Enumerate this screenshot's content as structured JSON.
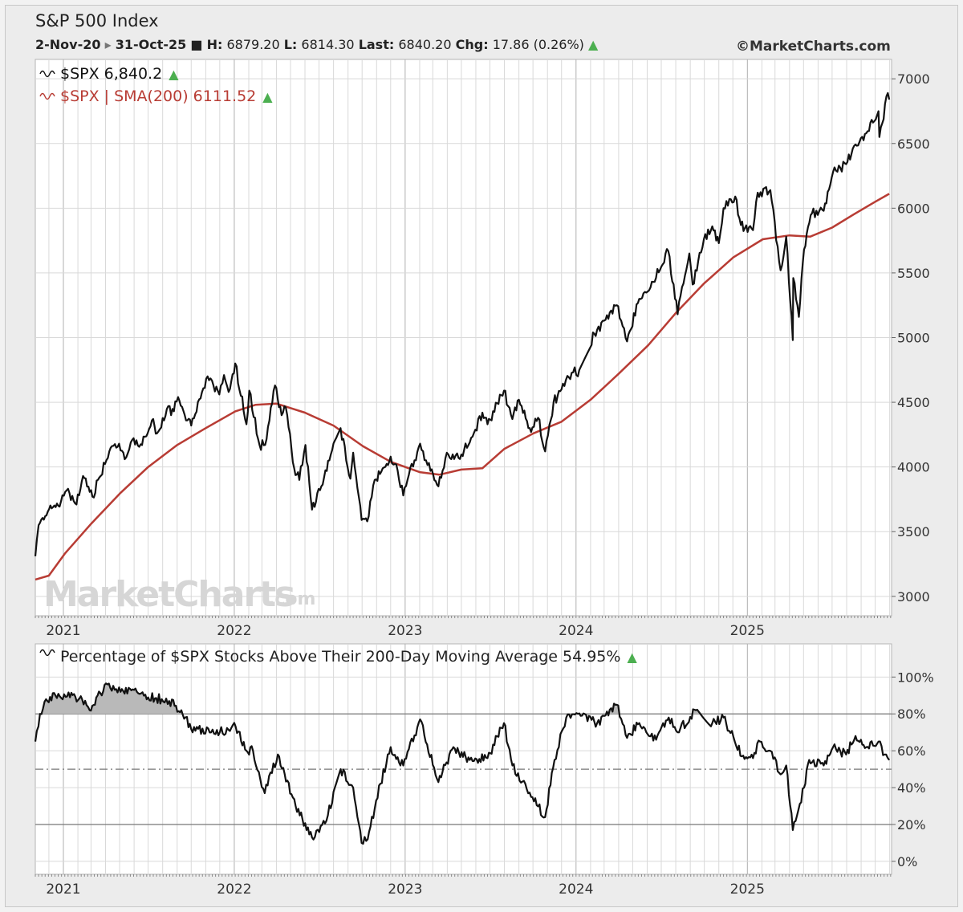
{
  "header": {
    "title": "S&P 500 Index",
    "date_start": "2-Nov-20",
    "date_end": "31-Oct-25",
    "high_label": "H:",
    "high_value": "6879.20",
    "low_label": "L:",
    "low_value": "6814.30",
    "last_label": "Last:",
    "last_value": "6840.20",
    "chg_label": "Chg:",
    "chg_value": "17.86 (0.26%)",
    "copyright": "©MarketCharts.com"
  },
  "watermark": {
    "main": "MarketCharts",
    "suffix": ".com"
  },
  "colors": {
    "price": "#111111",
    "sma": "#b83c34",
    "up": "#4caf50",
    "grid": "#d9d9d9",
    "year_grid": "#b0b0b0",
    "fill_above_80": "#b9b9b9"
  },
  "chart_data": [
    {
      "type": "line",
      "legend": [
        {
          "label": "$SPX 6,840.2",
          "color": "#111111"
        },
        {
          "label": "$SPX | SMA(200) 6111.52",
          "color": "#b83c34"
        }
      ],
      "x_ticks": [
        "2021",
        "2022",
        "2023",
        "2024",
        "2025"
      ],
      "y_ticks": [
        "3000",
        "3500",
        "4000",
        "4500",
        "5000",
        "5500",
        "6000",
        "6500",
        "7000"
      ],
      "ylim": [
        2850,
        7150
      ],
      "xlim": [
        "2020-11-02",
        "2025-11-05"
      ],
      "grid": true,
      "legend_position": "top-left",
      "series": [
        {
          "name": "$SPX",
          "points": [
            [
              "2020-11-02",
              3310
            ],
            [
              "2020-11-09",
              3550
            ],
            [
              "2020-11-23",
              3620
            ],
            [
              "2020-12-07",
              3680
            ],
            [
              "2020-12-21",
              3700
            ],
            [
              "2021-01-08",
              3820
            ],
            [
              "2021-01-29",
              3710
            ],
            [
              "2021-02-12",
              3930
            ],
            [
              "2021-03-04",
              3770
            ],
            [
              "2021-03-19",
              3920
            ],
            [
              "2021-04-09",
              4120
            ],
            [
              "2021-04-30",
              4180
            ],
            [
              "2021-05-12",
              4060
            ],
            [
              "2021-05-28",
              4210
            ],
            [
              "2021-06-18",
              4170
            ],
            [
              "2021-07-09",
              4360
            ],
            [
              "2021-07-20",
              4260
            ],
            [
              "2021-08-13",
              4470
            ],
            [
              "2021-08-19",
              4400
            ],
            [
              "2021-09-03",
              4540
            ],
            [
              "2021-09-20",
              4360
            ],
            [
              "2021-10-01",
              4320
            ],
            [
              "2021-10-21",
              4530
            ],
            [
              "2021-11-05",
              4700
            ],
            [
              "2021-11-30",
              4560
            ],
            [
              "2021-12-10",
              4710
            ],
            [
              "2021-12-20",
              4580
            ],
            [
              "2022-01-03",
              4800
            ],
            [
              "2022-01-27",
              4330
            ],
            [
              "2022-02-02",
              4590
            ],
            [
              "2022-02-24",
              4170
            ],
            [
              "2022-03-08",
              4170
            ],
            [
              "2022-03-29",
              4630
            ],
            [
              "2022-04-12",
              4400
            ],
            [
              "2022-04-21",
              4460
            ],
            [
              "2022-05-09",
              3990
            ],
            [
              "2022-05-20",
              3900
            ],
            [
              "2022-06-02",
              4170
            ],
            [
              "2022-06-16",
              3670
            ],
            [
              "2022-07-06",
              3850
            ],
            [
              "2022-07-29",
              4130
            ],
            [
              "2022-08-16",
              4300
            ],
            [
              "2022-09-06",
              3910
            ],
            [
              "2022-09-12",
              4110
            ],
            [
              "2022-09-30",
              3590
            ],
            [
              "2022-10-12",
              3580
            ],
            [
              "2022-10-28",
              3900
            ],
            [
              "2022-11-14",
              3990
            ],
            [
              "2022-12-01",
              4080
            ],
            [
              "2022-12-13",
              4020
            ],
            [
              "2022-12-28",
              3780
            ],
            [
              "2023-01-06",
              3900
            ],
            [
              "2023-02-02",
              4180
            ],
            [
              "2023-02-24",
              3970
            ],
            [
              "2023-03-13",
              3850
            ],
            [
              "2023-03-31",
              4110
            ],
            [
              "2023-04-25",
              4070
            ],
            [
              "2023-05-19",
              4190
            ],
            [
              "2023-06-15",
              4420
            ],
            [
              "2023-06-26",
              4330
            ],
            [
              "2023-07-31",
              4590
            ],
            [
              "2023-08-18",
              4370
            ],
            [
              "2023-09-01",
              4520
            ],
            [
              "2023-09-27",
              4270
            ],
            [
              "2023-10-12",
              4380
            ],
            [
              "2023-10-27",
              4120
            ],
            [
              "2023-11-14",
              4500
            ],
            [
              "2023-12-01",
              4600
            ],
            [
              "2023-12-29",
              4770
            ],
            [
              "2024-01-05",
              4700
            ],
            [
              "2024-02-09",
              5030
            ],
            [
              "2024-03-28",
              5250
            ],
            [
              "2024-04-19",
              4970
            ],
            [
              "2024-05-15",
              5300
            ],
            [
              "2024-06-14",
              5430
            ],
            [
              "2024-07-16",
              5670
            ],
            [
              "2024-08-05",
              5180
            ],
            [
              "2024-08-30",
              5650
            ],
            [
              "2024-09-06",
              5410
            ],
            [
              "2024-09-30",
              5760
            ],
            [
              "2024-10-18",
              5860
            ],
            [
              "2024-11-01",
              5730
            ],
            [
              "2024-11-11",
              6000
            ],
            [
              "2024-12-06",
              6090
            ],
            [
              "2024-12-18",
              5870
            ],
            [
              "2025-01-13",
              5830
            ],
            [
              "2025-01-23",
              6120
            ],
            [
              "2025-02-19",
              6140
            ],
            [
              "2025-03-13",
              5520
            ],
            [
              "2025-03-25",
              5780
            ],
            [
              "2025-04-08",
              4980
            ],
            [
              "2025-04-09",
              5460
            ],
            [
              "2025-04-21",
              5160
            ],
            [
              "2025-05-02",
              5680
            ],
            [
              "2025-05-19",
              5960
            ],
            [
              "2025-06-13",
              5980
            ],
            [
              "2025-07-03",
              6280
            ],
            [
              "2025-07-31",
              6340
            ],
            [
              "2025-08-14",
              6460
            ],
            [
              "2025-09-12",
              6580
            ],
            [
              "2025-10-08",
              6750
            ],
            [
              "2025-10-10",
              6550
            ],
            [
              "2025-10-28",
              6890
            ],
            [
              "2025-10-31",
              6840
            ]
          ]
        },
        {
          "name": "$SPX | SMA(200)",
          "points": [
            [
              "2020-11-02",
              3130
            ],
            [
              "2020-12-01",
              3160
            ],
            [
              "2021-01-04",
              3330
            ],
            [
              "2021-03-01",
              3560
            ],
            [
              "2021-05-03",
              3800
            ],
            [
              "2021-07-01",
              4000
            ],
            [
              "2021-09-01",
              4170
            ],
            [
              "2021-11-01",
              4300
            ],
            [
              "2022-01-03",
              4430
            ],
            [
              "2022-02-15",
              4480
            ],
            [
              "2022-04-01",
              4490
            ],
            [
              "2022-06-01",
              4420
            ],
            [
              "2022-08-01",
              4320
            ],
            [
              "2022-10-03",
              4160
            ],
            [
              "2022-12-01",
              4040
            ],
            [
              "2023-02-01",
              3960
            ],
            [
              "2023-03-15",
              3940
            ],
            [
              "2023-05-01",
              3980
            ],
            [
              "2023-06-15",
              3990
            ],
            [
              "2023-08-01",
              4140
            ],
            [
              "2023-10-02",
              4260
            ],
            [
              "2023-12-01",
              4350
            ],
            [
              "2024-02-01",
              4520
            ],
            [
              "2024-04-01",
              4720
            ],
            [
              "2024-06-03",
              4940
            ],
            [
              "2024-08-01",
              5190
            ],
            [
              "2024-10-01",
              5420
            ],
            [
              "2024-12-02",
              5620
            ],
            [
              "2025-02-03",
              5760
            ],
            [
              "2025-04-01",
              5790
            ],
            [
              "2025-05-15",
              5780
            ],
            [
              "2025-07-01",
              5850
            ],
            [
              "2025-08-15",
              5950
            ],
            [
              "2025-10-01",
              6050
            ],
            [
              "2025-10-31",
              6111.52
            ]
          ]
        }
      ]
    },
    {
      "type": "area",
      "legend": [
        {
          "label": "Percentage of $SPX Stocks Above Their 200-Day Moving Average 54.95%",
          "color": "#111111"
        }
      ],
      "x_ticks": [
        "2021",
        "2022",
        "2023",
        "2024",
        "2025"
      ],
      "y_ticks": [
        "0%",
        "20%",
        "40%",
        "60%",
        "80%",
        "100%"
      ],
      "ylim": [
        -7,
        118
      ],
      "xlim": [
        "2020-11-02",
        "2025-11-05"
      ],
      "reference_lines": [
        80,
        50,
        20
      ],
      "fill_above": 80,
      "grid": true,
      "series": [
        {
          "name": "Percentage of $SPX Stocks Above Their 200-Day Moving Average",
          "points": [
            [
              "2020-11-02",
              65
            ],
            [
              "2020-11-12",
              80
            ],
            [
              "2020-11-25",
              88
            ],
            [
              "2020-12-15",
              90
            ],
            [
              "2021-01-15",
              89
            ],
            [
              "2021-02-10",
              88
            ],
            [
              "2021-02-26",
              82
            ],
            [
              "2021-03-15",
              90
            ],
            [
              "2021-04-05",
              96
            ],
            [
              "2021-05-03",
              92
            ],
            [
              "2021-06-01",
              93
            ],
            [
              "2021-07-01",
              89
            ],
            [
              "2021-07-30",
              88
            ],
            [
              "2021-08-15",
              87
            ],
            [
              "2021-09-10",
              82
            ],
            [
              "2021-10-04",
              70
            ],
            [
              "2021-10-25",
              72
            ],
            [
              "2021-12-01",
              70
            ],
            [
              "2022-01-04",
              73
            ],
            [
              "2022-01-27",
              60
            ],
            [
              "2022-02-10",
              60
            ],
            [
              "2022-03-07",
              37
            ],
            [
              "2022-04-04",
              58
            ],
            [
              "2022-05-12",
              30
            ],
            [
              "2022-06-16",
              13
            ],
            [
              "2022-07-20",
              25
            ],
            [
              "2022-08-16",
              50
            ],
            [
              "2022-09-12",
              40
            ],
            [
              "2022-09-30",
              10
            ],
            [
              "2022-10-13",
              12
            ],
            [
              "2022-10-31",
              33
            ],
            [
              "2022-12-01",
              62
            ],
            [
              "2022-12-28",
              52
            ],
            [
              "2023-02-02",
              77
            ],
            [
              "2023-03-13",
              43
            ],
            [
              "2023-04-14",
              62
            ],
            [
              "2023-05-19",
              55
            ],
            [
              "2023-06-26",
              56
            ],
            [
              "2023-07-31",
              75
            ],
            [
              "2023-08-18",
              52
            ],
            [
              "2023-09-27",
              35
            ],
            [
              "2023-10-27",
              24
            ],
            [
              "2023-11-16",
              55
            ],
            [
              "2023-12-11",
              78
            ],
            [
              "2024-01-05",
              80
            ],
            [
              "2024-02-15",
              75
            ],
            [
              "2024-03-28",
              85
            ],
            [
              "2024-04-19",
              67
            ],
            [
              "2024-05-15",
              75
            ],
            [
              "2024-06-20",
              66
            ],
            [
              "2024-07-17",
              78
            ],
            [
              "2024-08-05",
              70
            ],
            [
              "2024-09-13",
              82
            ],
            [
              "2024-10-18",
              75
            ],
            [
              "2024-11-11",
              78
            ],
            [
              "2024-12-20",
              57
            ],
            [
              "2025-01-13",
              56
            ],
            [
              "2025-01-28",
              65
            ],
            [
              "2025-02-19",
              60
            ],
            [
              "2025-03-10",
              48
            ],
            [
              "2025-03-25",
              52
            ],
            [
              "2025-04-08",
              17
            ],
            [
              "2025-05-02",
              40
            ],
            [
              "2025-05-13",
              55
            ],
            [
              "2025-06-13",
              52
            ],
            [
              "2025-07-03",
              62
            ],
            [
              "2025-07-31",
              58
            ],
            [
              "2025-08-20",
              68
            ],
            [
              "2025-09-12",
              62
            ],
            [
              "2025-10-08",
              65
            ],
            [
              "2025-10-21",
              58
            ],
            [
              "2025-10-31",
              54.95
            ]
          ]
        }
      ]
    }
  ]
}
